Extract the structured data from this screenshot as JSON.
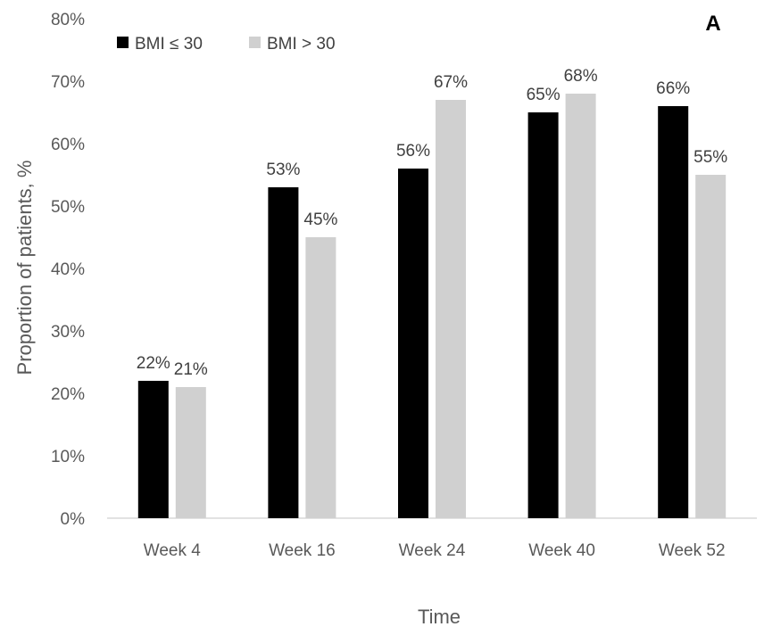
{
  "chart_data": {
    "type": "bar",
    "panel_label": "A",
    "categories": [
      "Week 4",
      "Week 16",
      "Week 24",
      "Week 40",
      "Week 52"
    ],
    "series": [
      {
        "name": "BMI ≤ 30",
        "color": "#000000",
        "values": [
          22,
          53,
          56,
          65,
          66
        ],
        "labels": [
          "22%",
          "53%",
          "56%",
          "65%",
          "66%"
        ]
      },
      {
        "name": "BMI > 30",
        "color": "#d0d0d0",
        "values": [
          21,
          45,
          67,
          68,
          55
        ],
        "labels": [
          "21%",
          "45%",
          "67%",
          "68%",
          "55%"
        ]
      }
    ],
    "xlabel": "Time",
    "ylabel": "Proportion of patients, %",
    "ylim": [
      0,
      80
    ],
    "yticks": [
      0,
      10,
      20,
      30,
      40,
      50,
      60,
      70,
      80
    ],
    "ytick_labels": [
      "0%",
      "10%",
      "20%",
      "30%",
      "40%",
      "50%",
      "60%",
      "70%",
      "80%"
    ],
    "grid": false,
    "legend_position": "top-left"
  }
}
